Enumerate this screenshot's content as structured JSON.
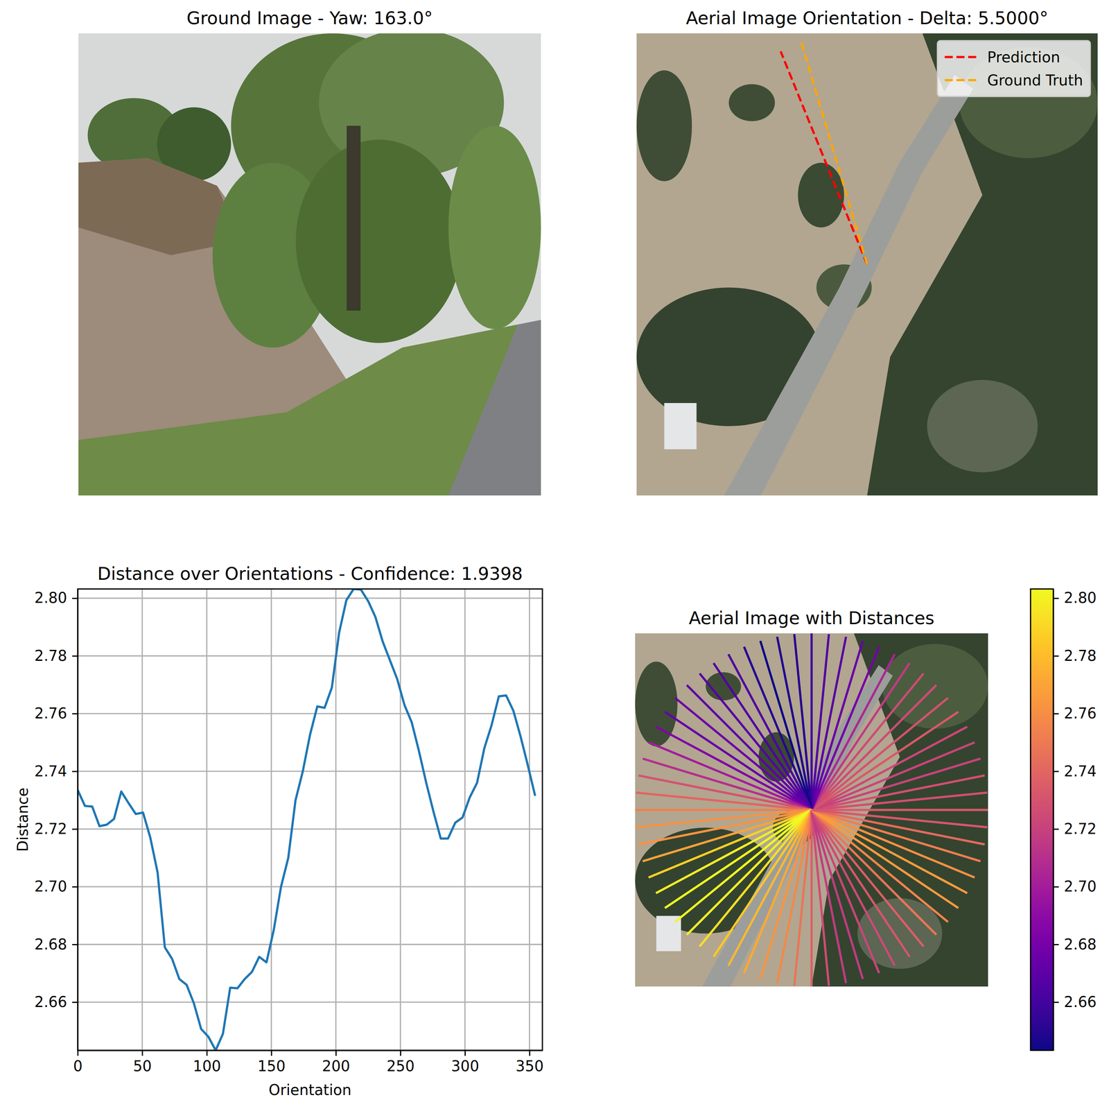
{
  "chart_data": [
    {
      "type": "image",
      "title": "Ground Image - Yaw: 163.0°"
    },
    {
      "type": "line",
      "title": "Aerial Image Orientation - Delta: 5.5000°",
      "series": [
        {
          "name": "Prediction",
          "color": "#ff0000",
          "line_style": "dashed",
          "x": [
            128,
            80
          ],
          "values": [
            128,
            10
          ]
        },
        {
          "name": "Ground Truth",
          "color": "#ffa500",
          "line_style": "dashed",
          "x": [
            128,
            91.5
          ],
          "values": [
            128,
            5
          ]
        }
      ],
      "xlim": [
        0,
        256
      ],
      "ylim": [
        256,
        0
      ],
      "tick_labels": false,
      "legend": "upper right"
    },
    {
      "type": "line",
      "title": "Distance over Orientations - Confidence: 1.9398",
      "x_label": "Orientation",
      "y_label": "Distance",
      "color": "#1f77b4",
      "x": [
        0,
        5.625,
        11.25,
        16.875,
        22.5,
        28.125,
        33.75,
        39.375,
        45,
        50.625,
        56.25,
        61.875,
        67.5,
        73.125,
        78.75,
        84.375,
        90,
        95.625,
        101.25,
        106.875,
        112.5,
        118.125,
        123.75,
        129.375,
        135,
        140.625,
        146.25,
        151.875,
        157.5,
        163.125,
        168.75,
        174.375,
        180,
        185.625,
        191.25,
        196.875,
        202.5,
        208.125,
        213.75,
        219.375,
        225,
        230.625,
        236.25,
        241.875,
        247.5,
        253.125,
        258.75,
        264.375,
        270,
        275.625,
        281.25,
        286.875,
        292.5,
        298.125,
        303.75,
        309.375,
        315,
        320.625,
        326.25,
        331.875,
        337.5,
        343.125,
        348.75,
        354.375
      ],
      "values": [
        2.7335,
        2.728,
        2.7278,
        2.721,
        2.7215,
        2.7235,
        2.733,
        2.729,
        2.7252,
        2.7257,
        2.717,
        2.705,
        2.679,
        2.675,
        2.668,
        2.666,
        2.6596,
        2.6507,
        2.648,
        2.6433,
        2.649,
        2.665,
        2.6648,
        2.668,
        2.6705,
        2.6757,
        2.6738,
        2.685,
        2.7,
        2.71,
        2.73,
        2.74,
        2.7527,
        2.7625,
        2.762,
        2.769,
        2.788,
        2.7993,
        2.8032,
        2.803,
        2.799,
        2.7935,
        2.785,
        2.7785,
        2.772,
        2.763,
        2.757,
        2.747,
        2.736,
        2.726,
        2.7167,
        2.7167,
        2.7222,
        2.724,
        2.731,
        2.736,
        2.748,
        2.756,
        2.766,
        2.7663,
        2.761,
        2.752,
        2.742,
        2.7315
      ],
      "xlim": [
        0,
        360
      ],
      "xticks": [
        0,
        50,
        100,
        150,
        200,
        250,
        300,
        350
      ],
      "ylim": [
        2.6433,
        2.8032
      ],
      "yticks": [
        2.66,
        2.68,
        {
          "value": 2.7,
          "label": "2.70"
        },
        2.72,
        2.74,
        2.76,
        2.78,
        {
          "value": 2.8,
          "label": "2.80"
        }
      ],
      "grid": true
    },
    {
      "type": "radial",
      "title": "Aerial Image with Distances",
      "tick_labels": false,
      "x": [
        0,
        5.625,
        11.25,
        16.875,
        22.5,
        28.125,
        33.75,
        39.375,
        45,
        50.625,
        56.25,
        61.875,
        67.5,
        73.125,
        78.75,
        84.375,
        90,
        95.625,
        101.25,
        106.875,
        112.5,
        118.125,
        123.75,
        129.375,
        135,
        140.625,
        146.25,
        151.875,
        157.5,
        163.125,
        168.75,
        174.375,
        180,
        185.625,
        191.25,
        196.875,
        202.5,
        208.125,
        213.75,
        219.375,
        225,
        230.625,
        236.25,
        241.875,
        247.5,
        253.125,
        258.75,
        264.375,
        270,
        275.625,
        281.25,
        286.875,
        292.5,
        298.125,
        303.75,
        309.375,
        315,
        320.625,
        326.25,
        331.875,
        337.5,
        343.125,
        348.75,
        354.375
      ],
      "values": [
        2.7335,
        2.728,
        2.7278,
        2.721,
        2.7215,
        2.7235,
        2.733,
        2.729,
        2.7252,
        2.7257,
        2.717,
        2.705,
        2.679,
        2.675,
        2.668,
        2.666,
        2.6596,
        2.6507,
        2.648,
        2.6433,
        2.649,
        2.665,
        2.6648,
        2.668,
        2.6705,
        2.6757,
        2.6738,
        2.685,
        2.7,
        2.71,
        2.73,
        2.74,
        2.7527,
        2.7625,
        2.762,
        2.769,
        2.788,
        2.7993,
        2.8032,
        2.803,
        2.799,
        2.7935,
        2.785,
        2.7785,
        2.772,
        2.763,
        2.757,
        2.747,
        2.736,
        2.726,
        2.7167,
        2.7167,
        2.7222,
        2.724,
        2.731,
        2.736,
        2.748,
        2.756,
        2.766,
        2.7663,
        2.761,
        2.752,
        2.742,
        2.7315
      ],
      "color_range": [
        2.6433,
        2.8032
      ],
      "color_ticks": [
        2.66,
        2.68,
        {
          "value": 2.7,
          "label": "2.70"
        },
        2.72,
        2.74,
        2.76,
        2.78,
        {
          "value": 2.8,
          "label": "2.80"
        }
      ]
    }
  ]
}
